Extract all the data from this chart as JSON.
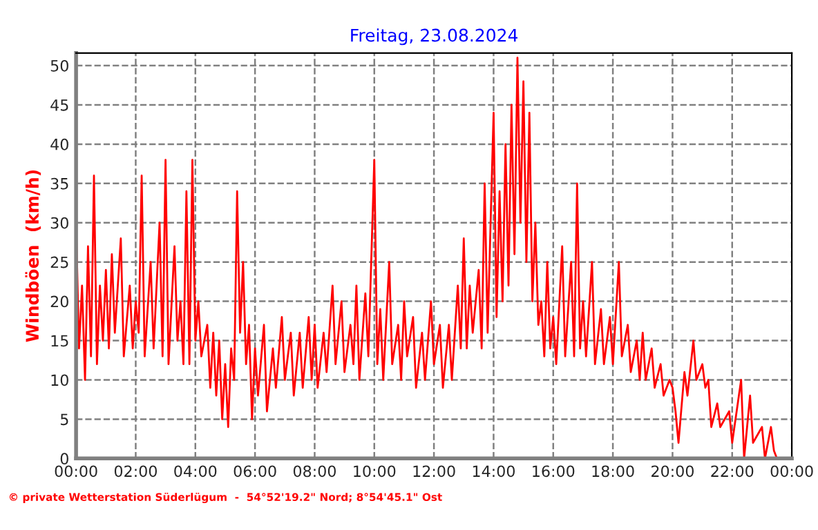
{
  "chart_data": {
    "type": "line",
    "title": "Freitag, 23.08.2024",
    "ylabel": "Windböen  (km/h)",
    "annotations": [
      "© private Wetterstation Süderlügum  -  54°52'19.2\" Nord; 8°54'45.1\" Ost"
    ],
    "x": [
      0.0,
      0.1,
      0.2,
      0.3,
      0.4,
      0.5,
      0.6,
      0.7,
      0.8,
      0.9,
      1.0,
      1.1,
      1.2,
      1.3,
      1.5,
      1.6,
      1.8,
      1.9,
      2.0,
      2.1,
      2.2,
      2.3,
      2.5,
      2.6,
      2.8,
      2.9,
      3.0,
      3.1,
      3.3,
      3.4,
      3.5,
      3.6,
      3.7,
      3.8,
      3.9,
      4.0,
      4.1,
      4.2,
      4.4,
      4.5,
      4.6,
      4.7,
      4.8,
      4.9,
      5.0,
      5.1,
      5.2,
      5.3,
      5.4,
      5.5,
      5.6,
      5.7,
      5.8,
      5.9,
      6.0,
      6.1,
      6.3,
      6.4,
      6.6,
      6.7,
      6.9,
      7.0,
      7.2,
      7.3,
      7.5,
      7.6,
      7.8,
      7.9,
      8.0,
      8.1,
      8.3,
      8.4,
      8.6,
      8.7,
      8.9,
      9.0,
      9.2,
      9.3,
      9.4,
      9.5,
      9.7,
      9.8,
      10.0,
      10.1,
      10.2,
      10.3,
      10.5,
      10.6,
      10.8,
      10.9,
      11.0,
      11.1,
      11.3,
      11.4,
      11.6,
      11.7,
      11.9,
      12.0,
      12.2,
      12.3,
      12.5,
      12.6,
      12.8,
      12.9,
      13.0,
      13.1,
      13.2,
      13.3,
      13.5,
      13.6,
      13.7,
      13.8,
      14.0,
      14.1,
      14.2,
      14.3,
      14.4,
      14.5,
      14.6,
      14.7,
      14.8,
      14.9,
      15.0,
      15.1,
      15.2,
      15.3,
      15.4,
      15.5,
      15.6,
      15.7,
      15.8,
      15.9,
      16.0,
      16.1,
      16.3,
      16.4,
      16.6,
      16.7,
      16.8,
      16.9,
      17.0,
      17.1,
      17.3,
      17.4,
      17.6,
      17.7,
      17.9,
      18.0,
      18.2,
      18.3,
      18.5,
      18.6,
      18.8,
      18.9,
      19.0,
      19.1,
      19.3,
      19.4,
      19.6,
      19.7,
      19.9,
      20.0,
      20.1,
      20.2,
      20.4,
      20.5,
      20.7,
      20.8,
      21.0,
      21.1,
      21.2,
      21.3,
      21.5,
      21.6,
      21.9,
      22.0,
      22.3,
      22.4,
      22.6,
      22.7,
      23.0,
      23.1,
      23.3,
      23.4,
      23.5,
      23.9
    ],
    "series": [
      {
        "color": "#ff0000",
        "values": [
          30,
          14,
          22,
          10,
          27,
          13,
          36,
          12,
          22,
          15,
          24,
          14,
          26,
          16,
          28,
          13,
          22,
          14,
          20,
          16,
          36,
          13,
          25,
          14,
          30,
          13,
          38,
          12,
          27,
          15,
          20,
          12,
          34,
          12,
          38,
          15,
          20,
          13,
          17,
          9,
          16,
          8,
          15,
          5,
          12,
          4,
          14,
          10,
          34,
          16,
          25,
          12,
          17,
          5,
          14,
          8,
          17,
          6,
          14,
          9,
          18,
          10,
          16,
          8,
          16,
          9,
          18,
          10,
          17,
          9,
          16,
          11,
          22,
          12,
          20,
          11,
          17,
          12,
          22,
          10,
          21,
          13,
          38,
          12,
          19,
          10,
          25,
          12,
          17,
          10,
          20,
          13,
          18,
          9,
          16,
          10,
          20,
          12,
          17,
          9,
          17,
          10,
          22,
          14,
          28,
          14,
          22,
          16,
          24,
          14,
          35,
          16,
          44,
          18,
          34,
          20,
          40,
          22,
          45,
          26,
          51,
          30,
          48,
          25,
          44,
          20,
          30,
          17,
          20,
          13,
          25,
          14,
          18,
          12,
          27,
          13,
          25,
          13,
          35,
          14,
          20,
          13,
          25,
          12,
          19,
          12,
          18,
          12,
          25,
          13,
          17,
          11,
          15,
          10,
          16,
          10,
          14,
          9,
          12,
          8,
          10,
          9,
          6,
          2,
          11,
          8,
          15,
          10,
          12,
          9,
          10,
          4,
          7,
          4,
          6,
          2,
          10,
          0,
          8,
          2,
          4,
          0,
          4,
          1,
          0,
          0
        ]
      }
    ],
    "xlim": [
      0,
      24
    ],
    "xticks": [
      {
        "value": 0,
        "label": "00:00"
      },
      {
        "value": 2,
        "label": "02:00"
      },
      {
        "value": 4,
        "label": "04:00"
      },
      {
        "value": 6,
        "label": "06:00"
      },
      {
        "value": 8,
        "label": "08:00"
      },
      {
        "value": 10,
        "label": "10:00"
      },
      {
        "value": 12,
        "label": "12:00"
      },
      {
        "value": 14,
        "label": "14:00"
      },
      {
        "value": 16,
        "label": "16:00"
      },
      {
        "value": 18,
        "label": "18:00"
      },
      {
        "value": 20,
        "label": "20:00"
      },
      {
        "value": 22,
        "label": "22:00"
      },
      {
        "value": 24,
        "label": "00:00"
      }
    ],
    "ylim": [
      0,
      51.6
    ],
    "yticks": [
      0,
      5,
      10,
      15,
      20,
      25,
      30,
      35,
      40,
      45,
      50
    ],
    "grid": true,
    "legend": false,
    "line_style": "solid",
    "marker": "none"
  }
}
